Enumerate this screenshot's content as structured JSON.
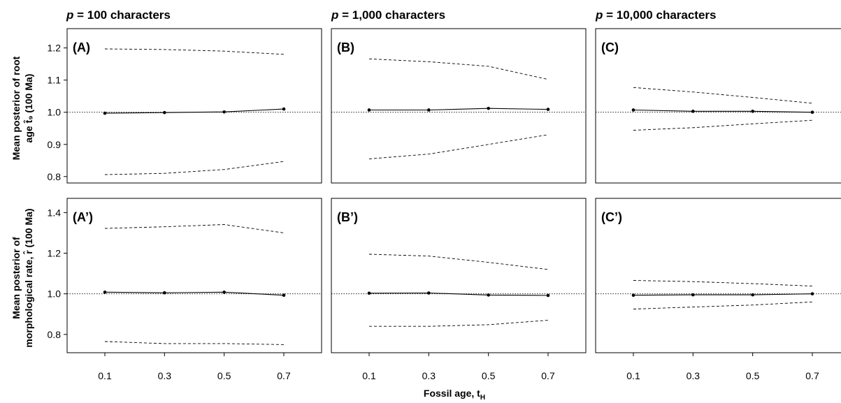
{
  "figure": {
    "x_axis_title": "Fossil age, t",
    "x_axis_title_sub": "H",
    "row_titles": [
      [
        "Mean posterior of root",
        "age t̂₉ (100 Ma)"
      ],
      [
        "Mean posterior of",
        "morphological rate, r̂ (100 Ma)"
      ]
    ],
    "column_titles": [
      {
        "prefix": "p",
        "text": " = 100 characters"
      },
      {
        "prefix": "p",
        "text": " = 1,000 characters"
      },
      {
        "prefix": "p",
        "text": " = 10,000 characters"
      }
    ]
  },
  "chart_data": [
    {
      "type": "line",
      "label": "(A)",
      "row": 0,
      "col": 0,
      "x": [
        0.1,
        0.3,
        0.5,
        0.7
      ],
      "x_ticks": [
        "0.1",
        "0.3",
        "0.5",
        "0.7"
      ],
      "ylim": [
        0.78,
        1.26
      ],
      "y_ticks": [
        0.8,
        0.9,
        1.0,
        1.1,
        1.2
      ],
      "y_tick_labels": [
        "0.8",
        "0.9",
        "1.0",
        "1.1",
        "1.2"
      ],
      "reference_y": 1.0,
      "mean": [
        0.997,
        0.999,
        1.001,
        1.01
      ],
      "upper": [
        1.197,
        1.195,
        1.19,
        1.18
      ],
      "lower": [
        0.806,
        0.81,
        0.822,
        0.847
      ]
    },
    {
      "type": "line",
      "label": "(B)",
      "row": 0,
      "col": 1,
      "x": [
        0.1,
        0.3,
        0.5,
        0.7
      ],
      "x_ticks": [
        "0.1",
        "0.3",
        "0.5",
        "0.7"
      ],
      "ylim": [
        0.78,
        1.26
      ],
      "y_ticks": [
        0.8,
        0.9,
        1.0,
        1.1,
        1.2
      ],
      "y_tick_labels": [
        "0.8",
        "0.9",
        "1.0",
        "1.1",
        "1.2"
      ],
      "reference_y": 1.0,
      "mean": [
        1.007,
        1.007,
        1.012,
        1.009
      ],
      "upper": [
        1.166,
        1.157,
        1.143,
        1.102
      ],
      "lower": [
        0.855,
        0.87,
        0.9,
        0.93
      ]
    },
    {
      "type": "line",
      "label": "(C)",
      "row": 0,
      "col": 2,
      "x": [
        0.1,
        0.3,
        0.5,
        0.7
      ],
      "x_ticks": [
        "0.1",
        "0.3",
        "0.5",
        "0.7"
      ],
      "ylim": [
        0.78,
        1.26
      ],
      "y_ticks": [
        0.8,
        0.9,
        1.0,
        1.1,
        1.2
      ],
      "y_tick_labels": [
        "0.8",
        "0.9",
        "1.0",
        "1.1",
        "1.2"
      ],
      "reference_y": 1.0,
      "mean": [
        1.007,
        1.003,
        1.003,
        1.0
      ],
      "upper": [
        1.077,
        1.063,
        1.046,
        1.028
      ],
      "lower": [
        0.944,
        0.952,
        0.964,
        0.975
      ]
    },
    {
      "type": "line",
      "label": "(A’)",
      "row": 1,
      "col": 0,
      "x": [
        0.1,
        0.3,
        0.5,
        0.7
      ],
      "x_ticks": [
        "0.1",
        "0.3",
        "0.5",
        "0.7"
      ],
      "ylim": [
        0.71,
        1.47
      ],
      "y_ticks": [
        0.8,
        1.0,
        1.2,
        1.4
      ],
      "y_tick_labels": [
        "0.8",
        "1.0",
        "1.2",
        "1.4"
      ],
      "reference_y": 1.0,
      "mean": [
        1.008,
        1.005,
        1.008,
        0.993
      ],
      "upper": [
        1.322,
        1.33,
        1.341,
        1.3
      ],
      "lower": [
        0.765,
        0.755,
        0.755,
        0.75
      ]
    },
    {
      "type": "line",
      "label": "(B’)",
      "row": 1,
      "col": 1,
      "x": [
        0.1,
        0.3,
        0.5,
        0.7
      ],
      "x_ticks": [
        "0.1",
        "0.3",
        "0.5",
        "0.7"
      ],
      "ylim": [
        0.71,
        1.47
      ],
      "y_ticks": [
        0.8,
        1.0,
        1.2,
        1.4
      ],
      "y_tick_labels": [
        "0.8",
        "1.0",
        "1.2",
        "1.4"
      ],
      "reference_y": 1.0,
      "mean": [
        1.003,
        1.004,
        0.994,
        0.992
      ],
      "upper": [
        1.195,
        1.186,
        1.155,
        1.12
      ],
      "lower": [
        0.84,
        0.84,
        0.848,
        0.87
      ]
    },
    {
      "type": "line",
      "label": "(C’)",
      "row": 1,
      "col": 2,
      "x": [
        0.1,
        0.3,
        0.5,
        0.7
      ],
      "x_ticks": [
        "0.1",
        "0.3",
        "0.5",
        "0.7"
      ],
      "ylim": [
        0.71,
        1.47
      ],
      "y_ticks": [
        0.8,
        1.0,
        1.2,
        1.4
      ],
      "y_tick_labels": [
        "0.8",
        "1.0",
        "1.2",
        "1.4"
      ],
      "reference_y": 1.0,
      "mean": [
        0.993,
        0.995,
        0.995,
        1.0
      ],
      "upper": [
        1.066,
        1.06,
        1.05,
        1.038
      ],
      "lower": [
        0.925,
        0.935,
        0.945,
        0.96
      ]
    }
  ]
}
